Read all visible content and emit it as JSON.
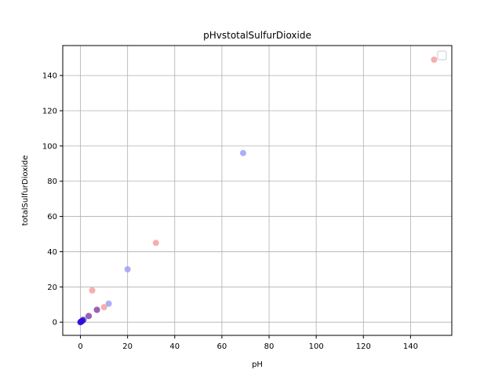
{
  "chart_data": {
    "type": "scatter",
    "title": "pHvstotalSulfurDioxide",
    "xlabel": "pH",
    "ylabel": "totalSulfurDioxide",
    "xlim": [
      -7.5,
      157.5
    ],
    "ylim": [
      -7.5,
      157.0
    ],
    "xticks": [
      0,
      20,
      40,
      60,
      80,
      100,
      120,
      140
    ],
    "yticks": [
      0,
      20,
      40,
      60,
      80,
      100,
      120,
      140
    ],
    "grid": true,
    "legend": {
      "placement": "top-right",
      "entries": []
    },
    "series": [
      {
        "color": "#f4a0a0",
        "points": [
          {
            "x": 150,
            "y": 149
          },
          {
            "x": 32,
            "y": 45
          },
          {
            "x": 5,
            "y": 18
          },
          {
            "x": 10,
            "y": 8.5
          },
          {
            "x": 7,
            "y": 7
          },
          {
            "x": 3.5,
            "y": 3.5
          },
          {
            "x": 1,
            "y": 1.5
          },
          {
            "x": 0.5,
            "y": 0.5
          }
        ]
      },
      {
        "color": "#a0a0f4",
        "points": [
          {
            "x": 69,
            "y": 96
          },
          {
            "x": 20,
            "y": 30
          },
          {
            "x": 12,
            "y": 10.5
          },
          {
            "x": 7,
            "y": 7
          },
          {
            "x": 3.5,
            "y": 3.5
          },
          {
            "x": 1.5,
            "y": 1.5
          },
          {
            "x": 1,
            "y": 1
          },
          {
            "x": 0.5,
            "y": 0.5
          },
          {
            "x": 0,
            "y": 0
          }
        ]
      }
    ],
    "overlap_points": [
      {
        "x": 7,
        "y": 7,
        "color": "#9a5ab0"
      },
      {
        "x": 3.5,
        "y": 3.5,
        "color": "#9a5ab0"
      },
      {
        "x": 1,
        "y": 1,
        "color": "#3a1ad0"
      },
      {
        "x": 0.5,
        "y": 0.5,
        "color": "#3010d8"
      },
      {
        "x": 0,
        "y": 0,
        "color": "#2a10e0"
      }
    ]
  }
}
